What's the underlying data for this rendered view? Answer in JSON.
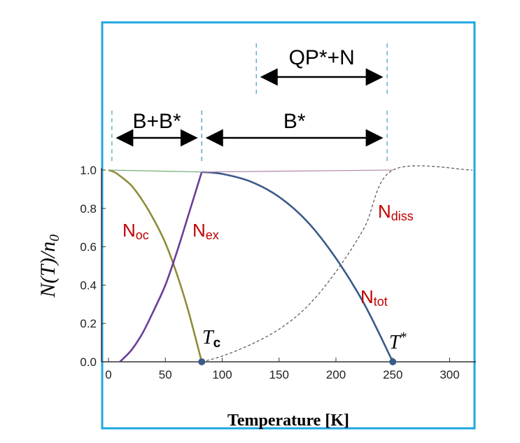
{
  "chart_data": {
    "type": "line",
    "xlabel": "Temperature [K]",
    "ylabel": "N(T)/n",
    "ylabel_subscript": "0",
    "xlim": [
      -5,
      325
    ],
    "ylim": [
      0,
      1
    ],
    "xticks": [
      0,
      50,
      100,
      150,
      200,
      250,
      300
    ],
    "yticks": [
      "0.0",
      "0.2",
      "0.4",
      "0.6",
      "0.8",
      "1.0"
    ],
    "Tc": 82,
    "Tstar": 250,
    "series": [
      {
        "name": "Noc",
        "color": "#8f8c3a",
        "desc": "condensate fraction, 1 at T=0 falling to 0 at Tc",
        "x": [
          0,
          5,
          10,
          20,
          30,
          40,
          50,
          60,
          70,
          82
        ],
        "y": [
          1.0,
          0.99,
          0.97,
          0.92,
          0.84,
          0.74,
          0.62,
          0.46,
          0.27,
          0.0
        ]
      },
      {
        "name": "Nex",
        "color": "#6a3d9a",
        "desc": "excited fraction, rises to ~1 at Tc",
        "x": [
          10,
          20,
          30,
          40,
          50,
          60,
          70,
          82
        ],
        "y": [
          0.0,
          0.06,
          0.15,
          0.27,
          0.4,
          0.57,
          0.76,
          0.99
        ]
      },
      {
        "name": "Ntot",
        "color": "#3a5a8a",
        "desc": "total pair fraction, 1 at Tc falling to 0 at T*",
        "x": [
          82,
          100,
          125,
          150,
          175,
          200,
          225,
          250
        ],
        "y": [
          0.99,
          0.98,
          0.94,
          0.86,
          0.73,
          0.54,
          0.3,
          0.0
        ]
      },
      {
        "name": "Ndiss",
        "color": "#555555",
        "dashed": true,
        "desc": "dissociated fraction, 0 at Tc rising to 1 at T*",
        "x": [
          82,
          100,
          125,
          150,
          175,
          200,
          225,
          250,
          320
        ],
        "y": [
          0.0,
          0.03,
          0.09,
          0.17,
          0.29,
          0.47,
          0.7,
          1.0,
          1.0
        ]
      },
      {
        "name": "top-green",
        "color": "#7db07d",
        "x": [
          0,
          82
        ],
        "y": [
          1.0,
          0.99
        ]
      },
      {
        "name": "top-pink",
        "color": "#b58fb0",
        "x": [
          82,
          250
        ],
        "y": [
          0.99,
          1.0
        ]
      }
    ],
    "regions": [
      {
        "label": "B+B*",
        "from": 3,
        "to": 82
      },
      {
        "label": "B*",
        "from": 82,
        "to": 245
      },
      {
        "label": "QP*+N",
        "from": 130,
        "to": 245
      }
    ],
    "labels": {
      "noc": {
        "main": "N",
        "sub": "oc"
      },
      "nex": {
        "main": "N",
        "sub": "ex"
      },
      "ndiss": {
        "main": "N",
        "sub": "diss"
      },
      "ntot": {
        "main": "N",
        "sub": "tot"
      },
      "tc": {
        "main": "T",
        "sub": "c"
      },
      "tstar": {
        "main": "T",
        "sup": "*"
      }
    }
  },
  "colors": {
    "frame": "#1ea7e1",
    "axis": "#333333",
    "label_red": "#c00000",
    "guide": "#4aa7c8",
    "marker": "#3a5a8a"
  }
}
